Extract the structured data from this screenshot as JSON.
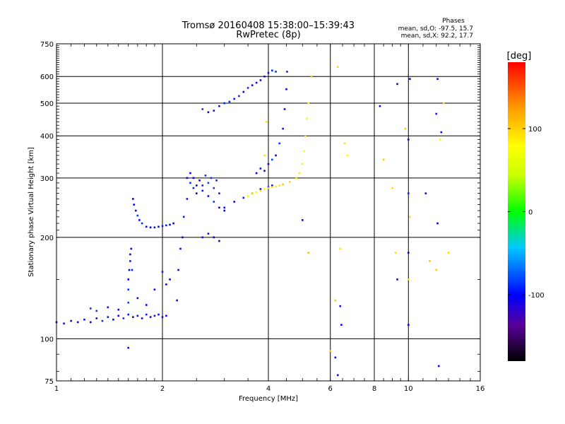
{
  "chart_data": {
    "type": "scatter",
    "title": "Tromsø 20160408 15:38:00–15:39:43",
    "subtitle": "RwPretec (8p)",
    "xlabel": "Frequency [MHz]",
    "ylabel": "Stationary phase Virtual Height [km]",
    "x_scale": "log",
    "y_scale": "log",
    "xlim": [
      1,
      16
    ],
    "ylim": [
      75,
      750
    ],
    "x_ticks": [
      1,
      2,
      4,
      6,
      8,
      10,
      16
    ],
    "y_ticks": [
      75,
      100,
      200,
      300,
      400,
      500,
      600,
      750
    ],
    "grid": true,
    "colorbar": {
      "label": "[deg]",
      "range": [
        -180,
        180
      ],
      "ticks": [
        100,
        0,
        -100
      ]
    },
    "stats_header": "Phases",
    "stats": [
      "mean, sd,O: -97.5, 15.7",
      "mean, sd,X:  92.2, 17.7"
    ],
    "series": [
      {
        "name": "O",
        "phase": -97.5,
        "points": [
          [
            1.0,
            112
          ],
          [
            1.05,
            111
          ],
          [
            1.1,
            113
          ],
          [
            1.15,
            112
          ],
          [
            1.2,
            114
          ],
          [
            1.25,
            112
          ],
          [
            1.3,
            115
          ],
          [
            1.35,
            113
          ],
          [
            1.4,
            116
          ],
          [
            1.45,
            114
          ],
          [
            1.5,
            117
          ],
          [
            1.55,
            115
          ],
          [
            1.6,
            118
          ],
          [
            1.65,
            116
          ],
          [
            1.7,
            117
          ],
          [
            1.75,
            115
          ],
          [
            1.8,
            118
          ],
          [
            1.85,
            116
          ],
          [
            1.9,
            117
          ],
          [
            1.95,
            118
          ],
          [
            2.0,
            116
          ],
          [
            2.05,
            117
          ],
          [
            1.25,
            123
          ],
          [
            1.3,
            121
          ],
          [
            1.4,
            124
          ],
          [
            1.5,
            122
          ],
          [
            1.6,
            128
          ],
          [
            1.7,
            132
          ],
          [
            1.8,
            126
          ],
          [
            1.9,
            140
          ],
          [
            2.0,
            158
          ],
          [
            2.05,
            145
          ],
          [
            2.1,
            150
          ],
          [
            1.6,
            140
          ],
          [
            1.6,
            150
          ],
          [
            1.61,
            160
          ],
          [
            1.62,
            170
          ],
          [
            1.62,
            178
          ],
          [
            1.63,
            185
          ],
          [
            1.64,
            160
          ],
          [
            1.65,
            260
          ],
          [
            1.66,
            250
          ],
          [
            1.68,
            240
          ],
          [
            1.7,
            232
          ],
          [
            1.72,
            225
          ],
          [
            1.75,
            220
          ],
          [
            1.8,
            215
          ],
          [
            1.85,
            214
          ],
          [
            1.9,
            214
          ],
          [
            1.95,
            215
          ],
          [
            2.0,
            216
          ],
          [
            2.05,
            217
          ],
          [
            2.1,
            218
          ],
          [
            2.15,
            220
          ],
          [
            2.2,
            130
          ],
          [
            2.22,
            160
          ],
          [
            2.25,
            185
          ],
          [
            2.28,
            200
          ],
          [
            2.3,
            230
          ],
          [
            2.35,
            260
          ],
          [
            2.4,
            290
          ],
          [
            2.45,
            300
          ],
          [
            2.5,
            285
          ],
          [
            2.6,
            275
          ],
          [
            2.7,
            265
          ],
          [
            2.8,
            255
          ],
          [
            2.9,
            245
          ],
          [
            3.0,
            240
          ],
          [
            2.35,
            300
          ],
          [
            2.4,
            310
          ],
          [
            2.45,
            280
          ],
          [
            2.5,
            270
          ],
          [
            2.55,
            295
          ],
          [
            2.6,
            285
          ],
          [
            2.65,
            305
          ],
          [
            2.7,
            290
          ],
          [
            2.75,
            300
          ],
          [
            2.8,
            280
          ],
          [
            2.85,
            295
          ],
          [
            2.9,
            270
          ],
          [
            2.6,
            200
          ],
          [
            2.7,
            205
          ],
          [
            2.8,
            200
          ],
          [
            2.9,
            195
          ],
          [
            3.0,
            245
          ],
          [
            3.2,
            255
          ],
          [
            3.4,
            262
          ],
          [
            3.6,
            270
          ],
          [
            3.8,
            278
          ],
          [
            4.0,
            282
          ],
          [
            4.1,
            285
          ],
          [
            3.7,
            310
          ],
          [
            3.8,
            320
          ],
          [
            3.9,
            315
          ],
          [
            4.0,
            330
          ],
          [
            4.1,
            340
          ],
          [
            4.2,
            350
          ],
          [
            4.3,
            380
          ],
          [
            4.4,
            420
          ],
          [
            4.45,
            480
          ],
          [
            4.5,
            550
          ],
          [
            4.52,
            620
          ],
          [
            2.6,
            480
          ],
          [
            2.7,
            470
          ],
          [
            2.8,
            475
          ],
          [
            2.9,
            490
          ],
          [
            3.0,
            500
          ],
          [
            3.1,
            505
          ],
          [
            3.2,
            515
          ],
          [
            3.3,
            525
          ],
          [
            3.4,
            540
          ],
          [
            3.5,
            555
          ],
          [
            3.6,
            565
          ],
          [
            3.7,
            575
          ],
          [
            3.8,
            585
          ],
          [
            3.9,
            600
          ],
          [
            4.0,
            615
          ],
          [
            4.1,
            625
          ],
          [
            4.2,
            620
          ],
          [
            5.0,
            225
          ],
          [
            6.2,
            88
          ],
          [
            6.4,
            125
          ],
          [
            6.45,
            110
          ],
          [
            9.3,
            150
          ],
          [
            9.3,
            570
          ],
          [
            8.3,
            490
          ],
          [
            10.0,
            180
          ],
          [
            10.0,
            110
          ],
          [
            10.0,
            270
          ],
          [
            10.0,
            390
          ],
          [
            10.1,
            590
          ],
          [
            11.2,
            270
          ],
          [
            12.0,
            465
          ],
          [
            12.1,
            590
          ],
          [
            12.1,
            220
          ],
          [
            12.2,
            83
          ],
          [
            12.4,
            410
          ],
          [
            6.3,
            78
          ],
          [
            1.6,
            94
          ]
        ]
      },
      {
        "name": "X",
        "phase": 92.2,
        "points": [
          [
            3.6,
            270
          ],
          [
            3.8,
            275
          ],
          [
            4.0,
            280
          ],
          [
            4.2,
            283
          ],
          [
            4.4,
            287
          ],
          [
            4.6,
            292
          ],
          [
            4.8,
            300
          ],
          [
            4.9,
            310
          ],
          [
            5.0,
            330
          ],
          [
            5.05,
            360
          ],
          [
            5.1,
            400
          ],
          [
            5.15,
            450
          ],
          [
            5.2,
            500
          ],
          [
            3.5,
            265
          ],
          [
            3.7,
            272
          ],
          [
            3.9,
            278
          ],
          [
            4.1,
            282
          ],
          [
            4.3,
            285
          ],
          [
            3.9,
            350
          ],
          [
            3.95,
            440
          ],
          [
            5.3,
            600
          ],
          [
            6.3,
            640
          ],
          [
            6.6,
            380
          ],
          [
            6.7,
            350
          ],
          [
            8.5,
            340
          ],
          [
            9.0,
            280
          ],
          [
            9.2,
            180
          ],
          [
            9.8,
            420
          ],
          [
            10.0,
            150
          ],
          [
            10.1,
            230
          ],
          [
            11.5,
            170
          ],
          [
            12.0,
            160
          ],
          [
            12.3,
            390
          ],
          [
            12.6,
            500
          ],
          [
            13.0,
            180
          ],
          [
            6.0,
            92
          ],
          [
            6.2,
            130
          ],
          [
            6.4,
            185
          ],
          [
            5.2,
            180
          ]
        ]
      }
    ]
  }
}
